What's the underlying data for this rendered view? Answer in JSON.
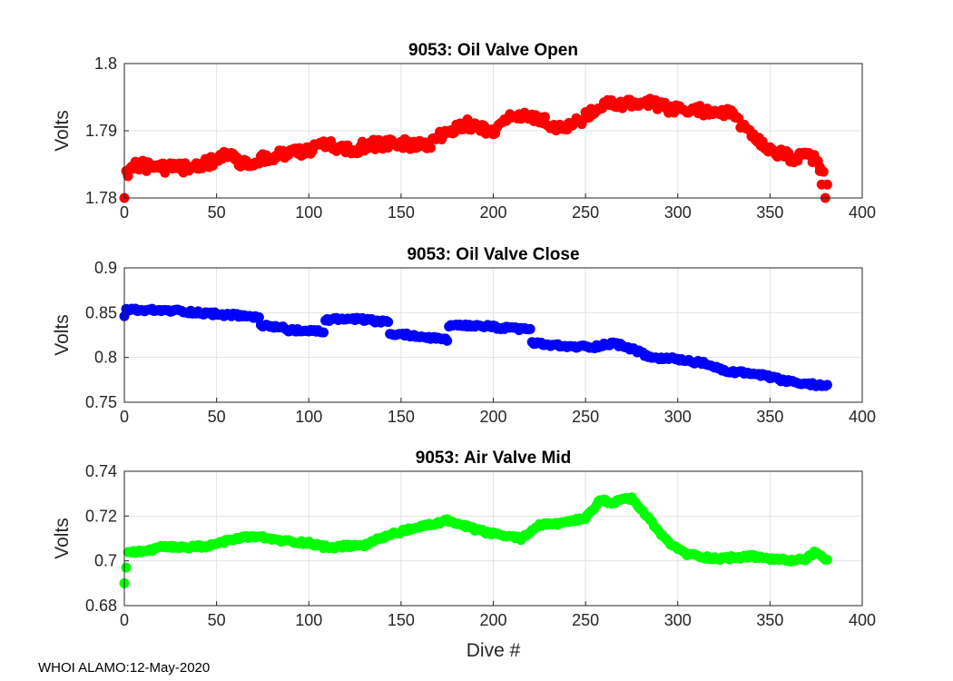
{
  "footer": "WHOI ALAMO:12-May-2020",
  "chart_data": [
    {
      "type": "scatter",
      "title": "9053: Oil Valve Open",
      "xlabel": "",
      "ylabel": "Volts",
      "xlim": [
        0,
        400
      ],
      "ylim": [
        1.78,
        1.8
      ],
      "xticks": [
        "0",
        "50",
        "100",
        "150",
        "200",
        "250",
        "300",
        "350",
        "400"
      ],
      "yticks": [
        "1.78",
        "1.79",
        "1.8"
      ],
      "grid": true,
      "color": "#ff0000",
      "start_points": [
        {
          "x": 0,
          "y": 1.78
        },
        {
          "x": 1,
          "y": 1.784
        }
      ],
      "end_points": [
        {
          "x": 377,
          "y": 1.784
        },
        {
          "x": 378,
          "y": 1.782
        },
        {
          "x": 380,
          "y": 1.78
        },
        {
          "x": 381,
          "y": 1.782
        }
      ],
      "trend": [
        [
          2,
          1.784
        ],
        [
          5,
          1.785
        ],
        [
          20,
          1.7845
        ],
        [
          40,
          1.7845
        ],
        [
          55,
          1.7865
        ],
        [
          65,
          1.785
        ],
        [
          85,
          1.7865
        ],
        [
          100,
          1.787
        ],
        [
          110,
          1.788
        ],
        [
          120,
          1.787
        ],
        [
          135,
          1.788
        ],
        [
          150,
          1.788
        ],
        [
          165,
          1.788
        ],
        [
          175,
          1.79
        ],
        [
          185,
          1.791
        ],
        [
          200,
          1.79
        ],
        [
          210,
          1.792
        ],
        [
          225,
          1.792
        ],
        [
          235,
          1.79
        ],
        [
          250,
          1.792
        ],
        [
          262,
          1.794
        ],
        [
          272,
          1.794
        ],
        [
          285,
          1.794
        ],
        [
          300,
          1.793
        ],
        [
          315,
          1.793
        ],
        [
          330,
          1.7925
        ],
        [
          340,
          1.789
        ],
        [
          350,
          1.787
        ],
        [
          362,
          1.786
        ],
        [
          374,
          1.786
        ],
        [
          379,
          1.784
        ]
      ]
    },
    {
      "type": "scatter",
      "title": "9053: Oil Valve Close",
      "xlabel": "",
      "ylabel": "Volts",
      "xlim": [
        0,
        400
      ],
      "ylim": [
        0.75,
        0.9
      ],
      "xticks": [
        "0",
        "50",
        "100",
        "150",
        "200",
        "250",
        "300",
        "350",
        "400"
      ],
      "yticks": [
        "0.75",
        "0.8",
        "0.85",
        "0.9"
      ],
      "grid": true,
      "color": "#0000ff",
      "start_points": [
        {
          "x": 0,
          "y": 0.846
        }
      ],
      "end_points": [],
      "trend": [
        [
          1,
          0.853
        ],
        [
          30,
          0.852
        ],
        [
          40,
          0.85
        ],
        [
          60,
          0.847
        ],
        [
          73,
          0.845
        ],
        [
          74,
          0.835
        ],
        [
          85,
          0.834
        ],
        [
          90,
          0.83
        ],
        [
          108,
          0.829
        ],
        [
          109,
          0.842
        ],
        [
          120,
          0.843
        ],
        [
          130,
          0.842
        ],
        [
          143,
          0.839
        ],
        [
          144,
          0.826
        ],
        [
          155,
          0.825
        ],
        [
          165,
          0.822
        ],
        [
          175,
          0.82
        ],
        [
          176,
          0.835
        ],
        [
          195,
          0.835
        ],
        [
          210,
          0.832
        ],
        [
          220,
          0.832
        ],
        [
          221,
          0.816
        ],
        [
          240,
          0.812
        ],
        [
          255,
          0.812
        ],
        [
          265,
          0.816
        ],
        [
          275,
          0.81
        ],
        [
          285,
          0.8
        ],
        [
          300,
          0.798
        ],
        [
          315,
          0.793
        ],
        [
          325,
          0.785
        ],
        [
          340,
          0.782
        ],
        [
          350,
          0.778
        ],
        [
          360,
          0.773
        ],
        [
          370,
          0.77
        ],
        [
          381,
          0.769
        ]
      ]
    },
    {
      "type": "scatter",
      "title": "9053: Air Valve Mid",
      "xlabel": "Dive #",
      "ylabel": "Volts",
      "xlim": [
        0,
        400
      ],
      "ylim": [
        0.68,
        0.74
      ],
      "xticks": [
        "0",
        "50",
        "100",
        "150",
        "200",
        "250",
        "300",
        "350",
        "400"
      ],
      "yticks": [
        "0.68",
        "0.7",
        "0.72",
        "0.74"
      ],
      "grid": true,
      "color": "#00ff00",
      "start_points": [
        {
          "x": 0,
          "y": 0.69
        },
        {
          "x": 1,
          "y": 0.697
        }
      ],
      "end_points": [],
      "trend": [
        [
          2,
          0.704
        ],
        [
          10,
          0.704
        ],
        [
          20,
          0.706
        ],
        [
          35,
          0.706
        ],
        [
          50,
          0.707
        ],
        [
          55,
          0.709
        ],
        [
          70,
          0.711
        ],
        [
          85,
          0.709
        ],
        [
          100,
          0.708
        ],
        [
          110,
          0.706
        ],
        [
          130,
          0.707
        ],
        [
          145,
          0.712
        ],
        [
          160,
          0.715
        ],
        [
          175,
          0.718
        ],
        [
          190,
          0.714
        ],
        [
          200,
          0.712
        ],
        [
          215,
          0.71
        ],
        [
          225,
          0.716
        ],
        [
          240,
          0.717
        ],
        [
          250,
          0.719
        ],
        [
          258,
          0.727
        ],
        [
          265,
          0.726
        ],
        [
          275,
          0.728
        ],
        [
          285,
          0.718
        ],
        [
          295,
          0.708
        ],
        [
          305,
          0.703
        ],
        [
          320,
          0.701
        ],
        [
          340,
          0.702
        ],
        [
          360,
          0.7
        ],
        [
          370,
          0.701
        ],
        [
          375,
          0.704
        ],
        [
          381,
          0.7
        ]
      ]
    }
  ]
}
